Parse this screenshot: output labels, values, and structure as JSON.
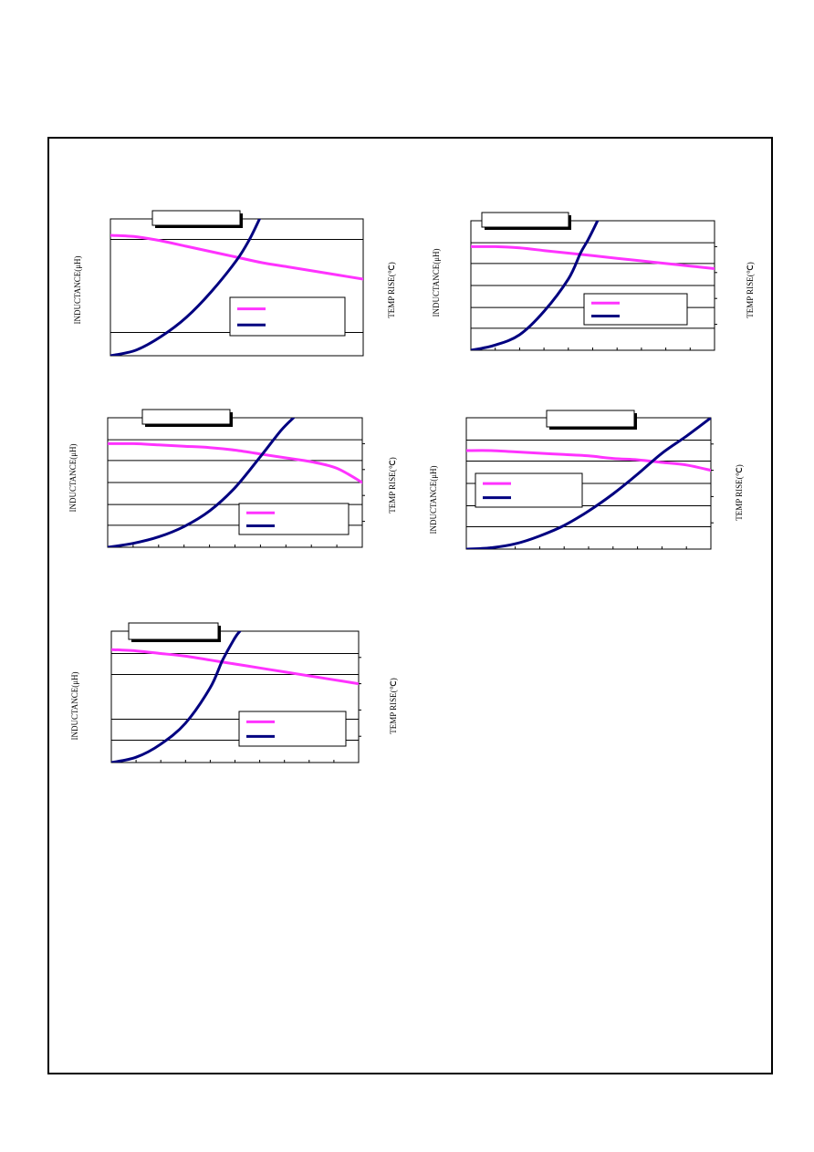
{
  "page": {
    "frame_color": "#000000"
  },
  "labels": {
    "y_left": "INDUCTANCE(μH)",
    "y_right": "TEMP RISE(℃)"
  },
  "colors": {
    "inductance": "#ff33ff",
    "temp_rise": "#000080",
    "grid": "#000000"
  },
  "chart_data": [
    {
      "type": "line",
      "title": "",
      "xlabel": "",
      "ylabel": "INDUCTANCE(μH)",
      "ylabel_right": "TEMP RISE(℃)",
      "xlim": [
        0,
        100
      ],
      "ylim": [
        0,
        100
      ],
      "hgrid": [
        17,
        85
      ],
      "legend": "lower-right",
      "series": [
        {
          "name": "",
          "axis": "left",
          "x": [
            0,
            10,
            20,
            30,
            40,
            50,
            60,
            70,
            80,
            90,
            100
          ],
          "values": [
            88,
            87,
            84,
            80,
            76,
            72,
            68,
            65,
            62,
            59,
            56
          ]
        },
        {
          "name": "",
          "axis": "right",
          "x": [
            0,
            10,
            20,
            30,
            40,
            50,
            55,
            59
          ],
          "values": [
            0,
            4,
            14,
            28,
            47,
            70,
            85,
            100
          ]
        }
      ]
    },
    {
      "type": "line",
      "title": "",
      "xlabel": "",
      "ylabel": "INDUCTANCE(μH)",
      "ylabel_right": "TEMP RISE(℃)",
      "xlim": [
        0,
        100
      ],
      "ylim": [
        0,
        100
      ],
      "hgrid": [
        17,
        33,
        50,
        67,
        83
      ],
      "legend": "lower-right",
      "series": [
        {
          "name": "",
          "axis": "left",
          "x": [
            0,
            10,
            20,
            30,
            40,
            50,
            60,
            70,
            80,
            90,
            100
          ],
          "values": [
            80,
            80,
            79,
            77,
            75,
            73,
            71,
            69,
            67,
            65,
            63
          ]
        },
        {
          "name": "",
          "axis": "right",
          "x": [
            0,
            10,
            20,
            30,
            40,
            45,
            48,
            52
          ],
          "values": [
            0,
            4,
            12,
            30,
            55,
            75,
            85,
            100
          ]
        }
      ]
    },
    {
      "type": "line",
      "title": "",
      "xlabel": "",
      "ylabel": "INDUCTANCE(μH)",
      "ylabel_right": "TEMP RISE(℃)",
      "xlim": [
        0,
        100
      ],
      "ylim": [
        0,
        100
      ],
      "hgrid": [
        17,
        33,
        50,
        67,
        83
      ],
      "legend": "lower-right",
      "series": [
        {
          "name": "",
          "axis": "left",
          "x": [
            0,
            10,
            20,
            30,
            40,
            50,
            60,
            70,
            80,
            90,
            100
          ],
          "values": [
            80,
            80,
            79,
            78,
            77,
            75,
            72,
            69,
            66,
            61,
            50
          ]
        },
        {
          "name": "",
          "axis": "right",
          "x": [
            0,
            10,
            20,
            30,
            40,
            50,
            60,
            68,
            73
          ],
          "values": [
            0,
            3,
            8,
            16,
            28,
            46,
            70,
            90,
            100
          ]
        }
      ]
    },
    {
      "type": "line",
      "title": "",
      "xlabel": "",
      "ylabel": "INDUCTANCE(μH)",
      "ylabel_right": "TEMP RISE(℃)",
      "xlim": [
        0,
        100
      ],
      "ylim": [
        0,
        100
      ],
      "hgrid": [
        17,
        33,
        50,
        67,
        83
      ],
      "legend": "left-middle",
      "series": [
        {
          "name": "",
          "axis": "left",
          "x": [
            0,
            10,
            20,
            30,
            40,
            50,
            60,
            70,
            80,
            90,
            100
          ],
          "values": [
            75,
            75,
            74,
            73,
            72,
            71,
            69,
            68,
            66,
            64,
            60
          ]
        },
        {
          "name": "",
          "axis": "right",
          "x": [
            0,
            10,
            20,
            30,
            40,
            50,
            60,
            70,
            80,
            90,
            100
          ],
          "values": [
            0,
            1,
            4,
            10,
            18,
            29,
            42,
            57,
            73,
            86,
            100
          ]
        }
      ]
    },
    {
      "type": "line",
      "title": "",
      "xlabel": "",
      "ylabel": "INDUCTANCE(μH)",
      "ylabel_right": "TEMP RISE(℃)",
      "xlim": [
        0,
        100
      ],
      "ylim": [
        0,
        100
      ],
      "hgrid": [
        17,
        33,
        67,
        83
      ],
      "legend": "lower-right",
      "series": [
        {
          "name": "",
          "axis": "left",
          "x": [
            0,
            10,
            20,
            30,
            40,
            50,
            60,
            70,
            80,
            90,
            100
          ],
          "values": [
            86,
            85,
            83,
            81,
            78,
            75,
            72,
            69,
            66,
            63,
            60
          ]
        },
        {
          "name": "",
          "axis": "right",
          "x": [
            0,
            10,
            20,
            30,
            40,
            45,
            50,
            52
          ],
          "values": [
            0,
            4,
            14,
            30,
            57,
            78,
            95,
            100
          ]
        }
      ]
    }
  ]
}
